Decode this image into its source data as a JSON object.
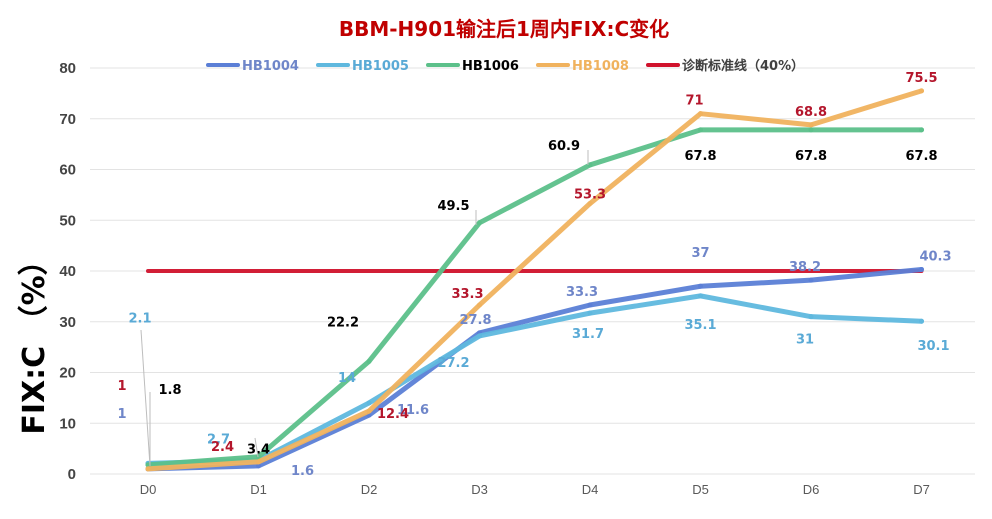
{
  "chart_data": {
    "type": "line",
    "title": "BBM-H901输注后1周内FIX:C变化",
    "xlabel": "",
    "ylabel": "FIX:C （%）",
    "categories": [
      "D0",
      "D1",
      "D2",
      "D3",
      "D4",
      "D5",
      "D6",
      "D7"
    ],
    "ylim": [
      0,
      80
    ],
    "yticks": [
      0,
      10,
      20,
      30,
      40,
      50,
      60,
      70,
      80
    ],
    "grid": true,
    "legend_position": "top",
    "series": [
      {
        "name": "HB1004",
        "color": "#5b7fd6",
        "values": [
          1,
          1.6,
          11.6,
          27.8,
          33.3,
          37,
          38.2,
          40.3
        ]
      },
      {
        "name": "HB1005",
        "color": "#5fb8de",
        "values": [
          2.1,
          2.7,
          14,
          27.2,
          31.7,
          35.1,
          31,
          30.1
        ]
      },
      {
        "name": "HB1006",
        "color": "#5cc08a",
        "values": [
          1.8,
          3.4,
          22.2,
          49.5,
          60.9,
          67.8,
          67.8,
          67.8
        ]
      },
      {
        "name": "HB1008",
        "color": "#f0b25e",
        "values": [
          1,
          2.4,
          12.4,
          33.3,
          53.3,
          71,
          68.8,
          75.5
        ]
      },
      {
        "name": "诊断标准线（40%）",
        "color": "#d0122c",
        "values": [
          40,
          40,
          40,
          40,
          40,
          40,
          40,
          40
        ]
      }
    ],
    "label_colors": {
      "HB1004": "#6f86c9",
      "HB1005": "#5aaad6",
      "HB1006": "#000000",
      "HB1008": "#b4162c"
    },
    "label_display": {
      "HB1008.4": "53.3"
    }
  }
}
